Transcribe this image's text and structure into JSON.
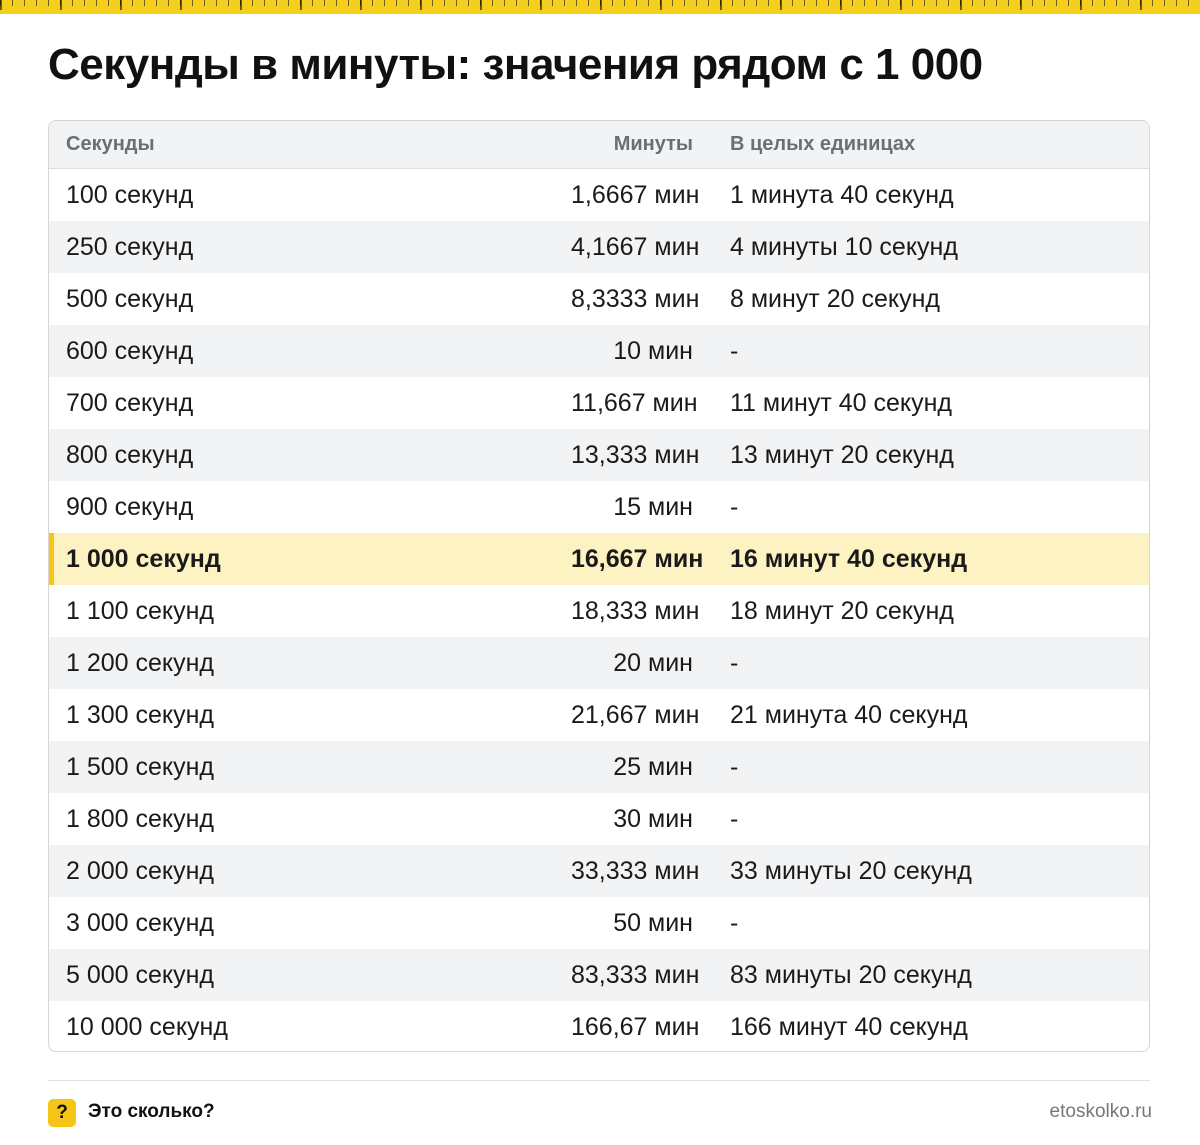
{
  "title": "Секунды в минуты: значения рядом с 1 000",
  "table": {
    "headers": {
      "seconds": "Секунды",
      "minutes": "Минуты",
      "whole": "В целых единицах"
    },
    "highlight_row_index": 7,
    "rows": [
      {
        "seconds": "100 секунд",
        "minutes": "1,6667 мин",
        "whole": "1 минута 40 секунд"
      },
      {
        "seconds": "250 секунд",
        "minutes": "4,1667 мин",
        "whole": "4 минуты 10 секунд"
      },
      {
        "seconds": "500 секунд",
        "minutes": "8,3333 мин",
        "whole": "8 минут 20 секунд"
      },
      {
        "seconds": "600 секунд",
        "minutes": "10 мин",
        "whole": "-"
      },
      {
        "seconds": "700 секунд",
        "minutes": "11,667 мин",
        "whole": "11 минут 40 секунд"
      },
      {
        "seconds": "800 секунд",
        "minutes": "13,333 мин",
        "whole": "13 минут 20 секунд"
      },
      {
        "seconds": "900 секунд",
        "minutes": "15 мин",
        "whole": "-"
      },
      {
        "seconds": "1 000 секунд",
        "minutes": "16,667 мин",
        "whole": "16 минут 40 секунд"
      },
      {
        "seconds": "1 100 секунд",
        "minutes": "18,333 мин",
        "whole": "18 минут 20 секунд"
      },
      {
        "seconds": "1 200 секунд",
        "minutes": "20 мин",
        "whole": "-"
      },
      {
        "seconds": "1 300 секунд",
        "minutes": "21,667 мин",
        "whole": "21 минута 40 секунд"
      },
      {
        "seconds": "1 500 секунд",
        "minutes": "25 мин",
        "whole": "-"
      },
      {
        "seconds": "1 800 секунд",
        "minutes": "30 мин",
        "whole": "-"
      },
      {
        "seconds": "2 000 секунд",
        "minutes": "33,333 мин",
        "whole": "33 минуты 20 секунд"
      },
      {
        "seconds": "3 000 секунд",
        "minutes": "50 мин",
        "whole": "-"
      },
      {
        "seconds": "5 000 секунд",
        "minutes": "83,333 мин",
        "whole": "83 минуты 20 секунд"
      },
      {
        "seconds": "10 000 секунд",
        "minutes": "166,67 мин",
        "whole": "166 минут 40 секунд"
      }
    ]
  },
  "footer": {
    "brand_icon": "?",
    "brand_name": "Это сколько?",
    "site": "etoskolko.ru"
  },
  "colors": {
    "accent": "#f5c518",
    "highlight_row": "#fdf2c2",
    "alt_row": "#f2f3f5"
  }
}
